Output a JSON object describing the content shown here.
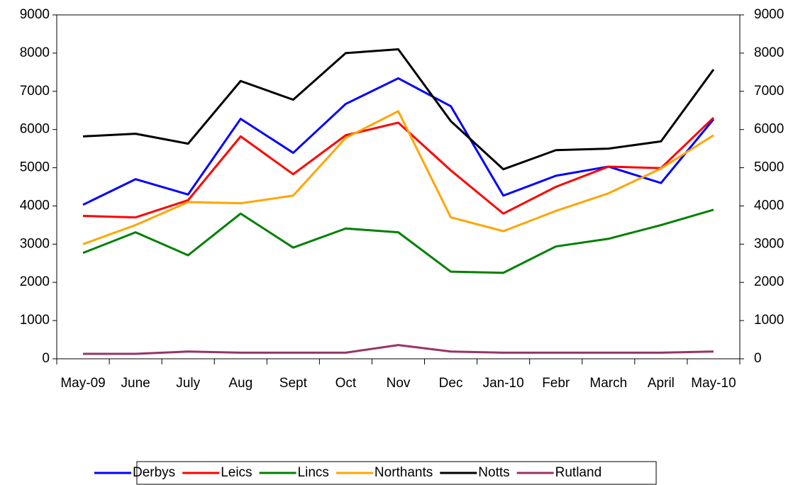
{
  "chart_data": {
    "type": "line",
    "categories": [
      "May-09",
      "June",
      "July",
      "Aug",
      "Sept",
      "Oct",
      "Nov",
      "Dec",
      "Jan-10",
      "Febr",
      "March",
      "April",
      "May-10"
    ],
    "series": [
      {
        "name": "Derbys",
        "color": "#0000ff",
        "values": [
          4030,
          4700,
          4300,
          6280,
          5390,
          6670,
          7340,
          6610,
          4270,
          4790,
          5030,
          4600,
          6270
        ]
      },
      {
        "name": "Leics",
        "color": "#ff0000",
        "values": [
          3740,
          3700,
          4150,
          5820,
          4830,
          5850,
          6180,
          4930,
          3800,
          4500,
          5030,
          4990,
          6310
        ]
      },
      {
        "name": "Lincs",
        "color": "#008000",
        "values": [
          2770,
          3310,
          2710,
          3800,
          2910,
          3410,
          3310,
          2280,
          2250,
          2940,
          3140,
          3500,
          3900
        ]
      },
      {
        "name": "Northants",
        "color": "#ffa500",
        "values": [
          3000,
          3500,
          4100,
          4070,
          4270,
          5780,
          6480,
          3700,
          3340,
          3870,
          4330,
          4980,
          5850
        ]
      },
      {
        "name": "Notts",
        "color": "#000000",
        "values": [
          5820,
          5890,
          5630,
          7270,
          6780,
          8000,
          8100,
          6220,
          4960,
          5460,
          5500,
          5690,
          7570
        ]
      },
      {
        "name": "Rutland",
        "color": "#993366",
        "values": [
          130,
          130,
          190,
          160,
          160,
          160,
          360,
          190,
          160,
          160,
          160,
          160,
          190
        ]
      }
    ],
    "ylim": [
      0,
      9000
    ],
    "yticks": [
      0,
      1000,
      2000,
      3000,
      4000,
      5000,
      6000,
      7000,
      8000,
      9000
    ],
    "y2lim": [
      0,
      9000
    ],
    "y2ticks": [
      0,
      1000,
      2000,
      3000,
      4000,
      5000,
      6000,
      7000,
      8000,
      9000
    ],
    "legend": "bottom"
  }
}
